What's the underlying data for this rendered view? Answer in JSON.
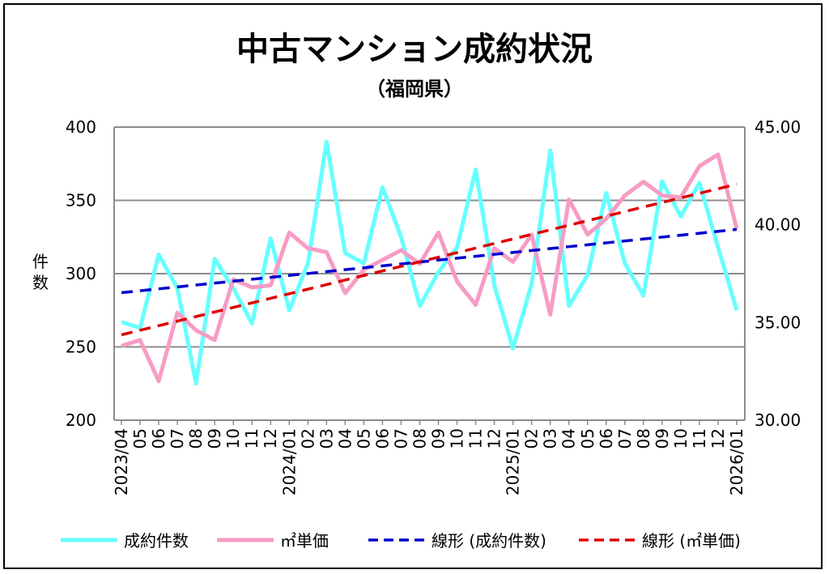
{
  "chart_data": {
    "type": "line",
    "title": "中古マンション成約状況",
    "subtitle": "（福岡県）",
    "ylabel": "件数",
    "ylim": [
      200,
      400
    ],
    "y_ticks": [
      "200",
      "250",
      "300",
      "350",
      "400"
    ],
    "y2lim": [
      30,
      45
    ],
    "y2_ticks": [
      "30.00",
      "35.00",
      "40.00",
      "45.00"
    ],
    "grid": true,
    "legend_position": "bottom",
    "x": [
      "2023/04",
      "05",
      "06",
      "07",
      "08",
      "09",
      "10",
      "11",
      "12",
      "2024/01",
      "02",
      "03",
      "04",
      "05",
      "06",
      "07",
      "08",
      "09",
      "10",
      "11",
      "12",
      "2025/01",
      "02",
      "03",
      "04",
      "05",
      "06",
      "07",
      "08",
      "09",
      "10",
      "11",
      "12",
      "2026/01"
    ],
    "series": [
      {
        "name": "成約件数",
        "axis": "left",
        "color": "#66FFFF",
        "values": [
          267,
          263,
          313,
          290,
          225,
          310,
          290,
          266,
          324,
          275,
          307,
          390,
          314,
          307,
          359,
          325,
          278,
          301,
          318,
          371,
          292,
          249,
          293,
          384,
          278,
          299,
          355,
          307,
          285,
          363,
          339,
          362,
          318,
          275
        ]
      },
      {
        "name": "㎡単価",
        "axis": "right",
        "color": "#F79CC4",
        "values": [
          33.8,
          34.1,
          32.0,
          35.5,
          34.6,
          34.1,
          37.2,
          36.8,
          36.9,
          39.6,
          38.8,
          38.6,
          36.5,
          37.7,
          38.2,
          38.7,
          38.0,
          39.6,
          37.1,
          35.9,
          38.8,
          38.1,
          39.5,
          35.4,
          41.3,
          39.5,
          40.3,
          41.5,
          42.2,
          41.5,
          41.4,
          43.0,
          43.6,
          39.8
        ]
      }
    ],
    "trendlines": [
      {
        "name": "線形 (成約件数)",
        "of": 0,
        "color": "#0000CC"
      },
      {
        "name": "線形 (㎡単価)",
        "of": 1,
        "color": "#DD0000"
      }
    ]
  }
}
